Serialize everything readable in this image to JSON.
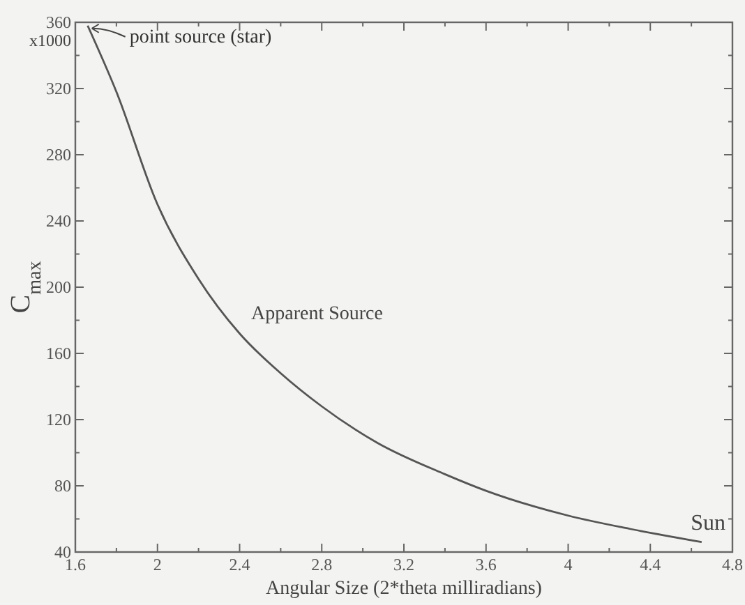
{
  "chart_data": {
    "type": "line",
    "xlabel": "Angular Size (2*theta milliradians)",
    "ylabel": "C$_{max}$",
    "series": [
      {
        "color": "#555555",
        "x": [
          1.66,
          1.8,
          2.0,
          2.2,
          2.4,
          2.6,
          2.8,
          3.07,
          3.4,
          3.6,
          4.0,
          4.3,
          4.65
        ],
        "values": [
          358,
          318,
          250,
          205,
          172,
          148,
          128,
          106,
          87,
          77,
          62,
          54,
          46
        ]
      }
    ],
    "xlim": [
      1.6,
      4.8
    ],
    "ylim": [
      40,
      360
    ],
    "xticks": [
      1.6,
      {
        "value": 1.8,
        "label": null
      },
      2,
      {
        "value": 2.2,
        "label": null
      },
      2.4,
      {
        "value": 2.6,
        "label": null
      },
      2.8,
      {
        "value": 3.0,
        "label": null
      },
      3.2,
      {
        "value": 3.4,
        "label": null
      },
      3.6,
      {
        "value": 3.8,
        "label": null
      },
      4,
      {
        "value": 4.2,
        "label": null
      },
      4.4,
      {
        "value": 4.6,
        "label": null
      },
      4.8
    ],
    "yticks": [
      40,
      {
        "value": 60,
        "label": null
      },
      80,
      {
        "value": 100,
        "label": null
      },
      120,
      {
        "value": 140,
        "label": null
      },
      160,
      {
        "value": 180,
        "label": null
      },
      200,
      {
        "value": 220,
        "label": null
      },
      240,
      {
        "value": 260,
        "label": null
      },
      280,
      {
        "value": 300,
        "label": null
      },
      320,
      {
        "value": 340,
        "label": null
      },
      360
    ],
    "annotations": [
      "x1000",
      {
        "text": "point source (star)",
        "x": 1.66,
        "y": 358
      },
      "Apparent Source",
      "Sun"
    ],
    "grid": false,
    "marker": "none",
    "line_style": "solid"
  }
}
